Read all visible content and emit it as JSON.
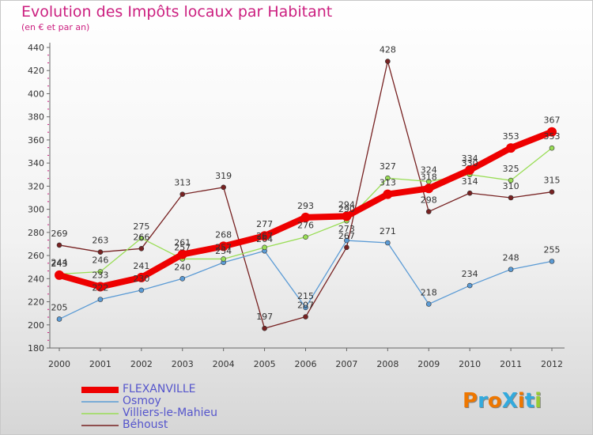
{
  "title": "Evolution des Impôts locaux par Habitant",
  "subtitle": "(en € et par an)",
  "logo": "ProXiti",
  "chart_data": {
    "type": "line",
    "x": [
      2000,
      2001,
      2002,
      2003,
      2004,
      2005,
      2006,
      2007,
      2008,
      2009,
      2010,
      2011,
      2012
    ],
    "ylim": [
      180,
      440
    ],
    "yticks": [
      180,
      200,
      220,
      240,
      260,
      280,
      300,
      320,
      340,
      360,
      380,
      400,
      420,
      440
    ],
    "grid": false,
    "legend_position": "bottom-left",
    "series": [
      {
        "name": "FLEXANVILLE",
        "color": "#ee0000",
        "values": [
          243,
          233,
          241,
          261,
          268,
          277,
          293,
          294,
          313,
          318,
          334,
          353,
          367
        ]
      },
      {
        "name": "Osmoy",
        "color": "#5b9bd5",
        "values": [
          205,
          222,
          230,
          240,
          254,
          264,
          215,
          273,
          271,
          218,
          234,
          248,
          255
        ]
      },
      {
        "name": "Villiers-le-Mahieu",
        "color": "#99dd55",
        "values": [
          244,
          246,
          275,
          257,
          257,
          267,
          276,
          290,
          327,
          324,
          330,
          325,
          353
        ]
      },
      {
        "name": "Béhoust",
        "color": "#772222",
        "values": [
          269,
          263,
          266,
          313,
          319,
          197,
          207,
          267,
          428,
          298,
          314,
          310,
          315
        ]
      }
    ],
    "data_labels": [
      {
        "series": 0,
        "labels": [
          "243",
          "233",
          "241",
          "261",
          "268",
          "277",
          "293",
          "294",
          "313",
          "318",
          "334",
          "353",
          "367"
        ]
      },
      {
        "series": 1,
        "labels": [
          "205",
          "222",
          "230",
          "240",
          "254",
          "264",
          "215",
          "273",
          "271",
          "218",
          "234",
          "248",
          "255"
        ]
      },
      {
        "series": 2,
        "labels": [
          "244",
          "246",
          "275",
          "257",
          "257",
          "267",
          "276",
          "290",
          "327",
          "324",
          "330",
          "325",
          "353"
        ]
      },
      {
        "series": 3,
        "labels": [
          "269",
          "263",
          "266",
          "313",
          "319",
          "197",
          "207",
          "267",
          "428",
          "298",
          "314",
          "310",
          "315"
        ]
      }
    ]
  }
}
